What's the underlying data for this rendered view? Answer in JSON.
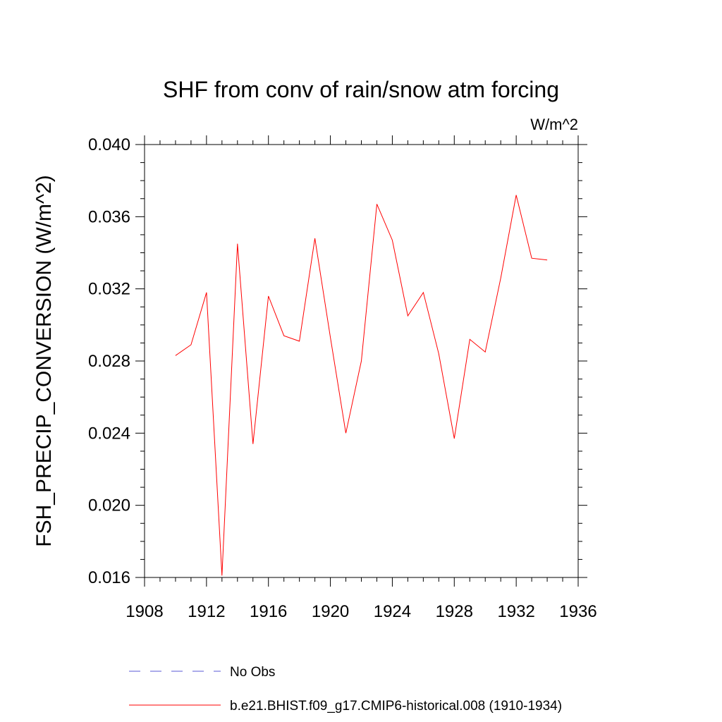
{
  "chart_data": {
    "type": "line",
    "title": "SHF from conv of rain/snow atm forcing",
    "units_label": "W/m^2",
    "ylabel": "FSH_PRECIP_CONVERSION  (W/m^2)",
    "xlabel": "",
    "xlim": [
      1908,
      1936
    ],
    "ylim": [
      0.016,
      0.04
    ],
    "x_ticks": [
      1908,
      1912,
      1916,
      1920,
      1924,
      1928,
      1932,
      1936
    ],
    "x_tick_labels": [
      "1908",
      "1912",
      "1916",
      "1920",
      "1924",
      "1928",
      "1932",
      "1936"
    ],
    "y_ticks": [
      0.016,
      0.02,
      0.024,
      0.028,
      0.032,
      0.036,
      0.04
    ],
    "y_tick_labels": [
      "0.016",
      "0.020",
      "0.024",
      "0.028",
      "0.032",
      "0.036",
      "0.040"
    ],
    "grid": false,
    "legend_placement": "bottom-center",
    "series": [
      {
        "name": "No Obs",
        "color": "#5a5ad6",
        "dashed": true,
        "x": [],
        "y": []
      },
      {
        "name": "b.e21.BHIST.f09_g17.CMIP6-historical.008 (1910-1934)",
        "color": "#ff0000",
        "dashed": false,
        "x": [
          1910,
          1911,
          1912,
          1913,
          1914,
          1915,
          1916,
          1917,
          1918,
          1919,
          1920,
          1921,
          1922,
          1923,
          1924,
          1925,
          1926,
          1927,
          1928,
          1929,
          1930,
          1931,
          1932,
          1933,
          1934
        ],
        "y": [
          0.0283,
          0.0289,
          0.0318,
          0.0161,
          0.0345,
          0.0234,
          0.0316,
          0.0294,
          0.0291,
          0.0348,
          0.0293,
          0.024,
          0.028,
          0.0367,
          0.0347,
          0.0305,
          0.0318,
          0.0284,
          0.0237,
          0.0292,
          0.0285,
          0.0326,
          0.0372,
          0.0337,
          0.0336
        ]
      }
    ]
  }
}
